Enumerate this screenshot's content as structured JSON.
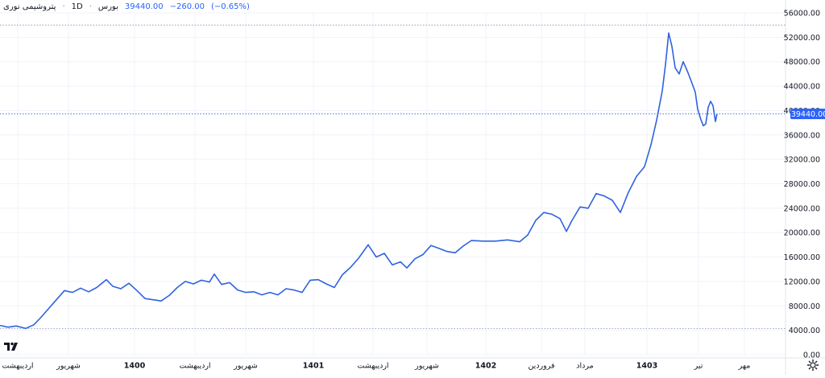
{
  "header": {
    "instrument": "پتروشیمی نوری",
    "interval": "1D",
    "exchange": "بورس",
    "last": "39440.00",
    "change": "−260.00",
    "change_pct": "(−0.65%)"
  },
  "colors": {
    "line": "#2f62e0",
    "accent": "#2962ff",
    "grid": "#f0f3fa",
    "axis_text": "#131722",
    "price_badge_bg": "#2962ff"
  },
  "icons": [
    "tradingview-logo-icon",
    "settings-gear-icon"
  ],
  "chart_data": {
    "type": "line",
    "ylim": [
      0,
      56000
    ],
    "y_ticks": [
      "56000.00",
      "52000.00",
      "48000.00",
      "44000.00",
      "40000.00",
      "36000.00",
      "32000.00",
      "28000.00",
      "24000.00",
      "20000.00",
      "16000.00",
      "12000.00",
      "8000.00",
      "4000.00",
      "0.00"
    ],
    "x_ticks": [
      "اردیبهشت",
      "شهریور",
      "1400",
      "اردیبهشت",
      "شهریور",
      "1401",
      "اردیبهشت",
      "شهریور",
      "1402",
      "فروردین",
      "مرداد",
      "1403",
      "تیر",
      "مهر"
    ],
    "bold_x_ticks": [
      "1400",
      "1401",
      "1402",
      "1403"
    ],
    "last_price_badge": "39440.00",
    "grid": true,
    "series": [
      {
        "values": [
          [
            0,
            4800
          ],
          [
            10,
            4500
          ],
          [
            20,
            4700
          ],
          [
            32,
            4300
          ],
          [
            42,
            4900
          ],
          [
            50,
            6000
          ],
          [
            60,
            7500
          ],
          [
            70,
            9000
          ],
          [
            80,
            10500
          ],
          [
            90,
            10200
          ],
          [
            100,
            10900
          ],
          [
            110,
            10300
          ],
          [
            120,
            11000
          ],
          [
            132,
            12300
          ],
          [
            140,
            11200
          ],
          [
            150,
            10800
          ],
          [
            160,
            11700
          ],
          [
            170,
            10500
          ],
          [
            180,
            9200
          ],
          [
            190,
            9000
          ],
          [
            200,
            8800
          ],
          [
            210,
            9700
          ],
          [
            220,
            11000
          ],
          [
            230,
            12000
          ],
          [
            240,
            11600
          ],
          [
            250,
            12200
          ],
          [
            260,
            11900
          ],
          [
            266,
            13200
          ],
          [
            275,
            11500
          ],
          [
            285,
            11800
          ],
          [
            295,
            10600
          ],
          [
            305,
            10200
          ],
          [
            315,
            10300
          ],
          [
            325,
            9800
          ],
          [
            335,
            10200
          ],
          [
            345,
            9800
          ],
          [
            355,
            10800
          ],
          [
            365,
            10600
          ],
          [
            375,
            10200
          ],
          [
            385,
            12200
          ],
          [
            395,
            12300
          ],
          [
            405,
            11600
          ],
          [
            415,
            11000
          ],
          [
            425,
            13100
          ],
          [
            435,
            14300
          ],
          [
            445,
            15800
          ],
          [
            457,
            18000
          ],
          [
            467,
            16000
          ],
          [
            477,
            16600
          ],
          [
            487,
            14700
          ],
          [
            497,
            15200
          ],
          [
            505,
            14200
          ],
          [
            515,
            15700
          ],
          [
            525,
            16400
          ],
          [
            535,
            17900
          ],
          [
            545,
            17400
          ],
          [
            555,
            16900
          ],
          [
            565,
            16700
          ],
          [
            575,
            17800
          ],
          [
            585,
            18700
          ],
          [
            600,
            18600
          ],
          [
            615,
            18600
          ],
          [
            630,
            18800
          ],
          [
            645,
            18500
          ],
          [
            655,
            19600
          ],
          [
            665,
            22000
          ],
          [
            675,
            23300
          ],
          [
            685,
            23000
          ],
          [
            695,
            22300
          ],
          [
            703,
            20200
          ],
          [
            710,
            22000
          ],
          [
            720,
            24200
          ],
          [
            730,
            24000
          ],
          [
            740,
            26400
          ],
          [
            750,
            26000
          ],
          [
            760,
            25300
          ],
          [
            770,
            23300
          ],
          [
            780,
            26600
          ],
          [
            790,
            29200
          ],
          [
            800,
            30800
          ],
          [
            808,
            34400
          ],
          [
            815,
            38400
          ],
          [
            822,
            43200
          ],
          [
            826,
            47500
          ],
          [
            830,
            52700
          ],
          [
            834,
            50500
          ],
          [
            838,
            47000
          ],
          [
            843,
            46000
          ],
          [
            848,
            48000
          ],
          [
            853,
            46500
          ],
          [
            858,
            44800
          ],
          [
            863,
            43000
          ],
          [
            866,
            40200
          ],
          [
            870,
            38500
          ],
          [
            873,
            37500
          ],
          [
            876,
            37800
          ],
          [
            879,
            40500
          ],
          [
            882,
            41500
          ],
          [
            885,
            40800
          ],
          [
            888,
            38200
          ],
          [
            890,
            39440
          ]
        ]
      }
    ]
  }
}
